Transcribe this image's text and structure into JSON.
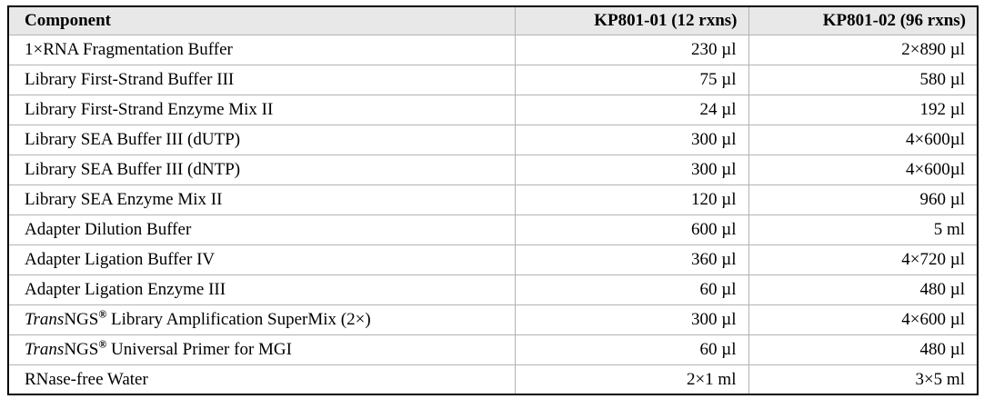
{
  "table": {
    "headers": [
      "Component",
      "KP801-01 (12 rxns)",
      "KP801-02 (96 rxns)"
    ],
    "rows": [
      {
        "component": "1×RNA Fragmentation Buffer",
        "vol_12rxns": "230 µl",
        "vol_96rxns": "2×890 µl"
      },
      {
        "component": "Library First-Strand Buffer III",
        "vol_12rxns": "75 µl",
        "vol_96rxns": "580 µl"
      },
      {
        "component": "Library First-Strand Enzyme Mix II",
        "vol_12rxns": "24 µl",
        "vol_96rxns": "192 µl"
      },
      {
        "component": "Library SEA Buffer III (dUTP)",
        "vol_12rxns": "300 µl",
        "vol_96rxns": "4×600µl"
      },
      {
        "component": "Library SEA Buffer III (dNTP)",
        "vol_12rxns": "300 µl",
        "vol_96rxns": "4×600µl"
      },
      {
        "component": "Library SEA Enzyme Mix II",
        "vol_12rxns": "120 µl",
        "vol_96rxns": "960 µl"
      },
      {
        "component": "Adapter Dilution Buffer",
        "vol_12rxns": "600 µl",
        "vol_96rxns": "5 ml"
      },
      {
        "component": "Adapter Ligation Buffer IV",
        "vol_12rxns": "360 µl",
        "vol_96rxns": "4×720 µl"
      },
      {
        "component": "Adapter Ligation Enzyme III",
        "vol_12rxns": "60 µl",
        "vol_96rxns": "480 µl"
      },
      {
        "component_italic": "Trans",
        "component_brand": "NGS",
        "component_reg": "®",
        "component_rest": " Library Amplification SuperMix (2×)",
        "vol_12rxns": "300 µl",
        "vol_96rxns": "4×600 µl"
      },
      {
        "component_italic": "Trans",
        "component_brand": "NGS",
        "component_reg": "®",
        "component_rest": " Universal Primer for MGI",
        "vol_12rxns": "60 µl",
        "vol_96rxns": "480 µl"
      },
      {
        "component": "RNase-free Water",
        "vol_12rxns": "2×1 ml",
        "vol_96rxns": "3×5 ml"
      }
    ]
  },
  "colors": {
    "header_bg": "#e8e8e8",
    "outer_border": "#000000",
    "inner_border": "#b3b3b3",
    "text": "#000000",
    "row_bg": "#ffffff"
  }
}
